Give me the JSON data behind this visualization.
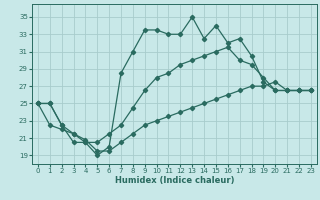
{
  "xlabel": "Humidex (Indice chaleur)",
  "xlim": [
    -0.5,
    23.5
  ],
  "ylim": [
    18.0,
    36.5
  ],
  "xticks": [
    0,
    1,
    2,
    3,
    4,
    5,
    6,
    7,
    8,
    9,
    10,
    11,
    12,
    13,
    14,
    15,
    16,
    17,
    18,
    19,
    20,
    21,
    22,
    23
  ],
  "yticks": [
    19,
    21,
    23,
    25,
    27,
    29,
    31,
    33,
    35
  ],
  "bg_color": "#c8e8e8",
  "grid_color": "#a8cccc",
  "line_color": "#2a6b60",
  "line1_x": [
    0,
    1,
    2,
    3,
    4,
    5,
    6,
    7,
    8,
    9,
    10,
    11,
    12,
    13,
    14,
    15,
    16,
    17,
    18,
    19,
    20,
    21,
    22,
    23
  ],
  "line1_y": [
    25.0,
    25.0,
    22.5,
    20.5,
    20.5,
    19.0,
    20.0,
    28.5,
    31.0,
    33.5,
    33.5,
    33.0,
    33.0,
    35.0,
    32.5,
    34.0,
    32.0,
    32.5,
    30.5,
    27.5,
    26.5,
    26.5,
    26.5,
    26.5
  ],
  "line2_x": [
    0,
    1,
    2,
    3,
    4,
    5,
    6,
    7,
    8,
    9,
    10,
    11,
    12,
    13,
    14,
    15,
    16,
    17,
    18,
    19,
    20,
    21,
    22,
    23
  ],
  "line2_y": [
    25.0,
    25.0,
    22.5,
    21.5,
    20.5,
    20.5,
    21.5,
    22.5,
    24.5,
    26.5,
    28.0,
    28.5,
    29.5,
    30.0,
    30.5,
    31.0,
    31.5,
    30.0,
    29.5,
    28.0,
    26.5,
    26.5,
    26.5,
    26.5
  ],
  "line3_x": [
    0,
    1,
    2,
    3,
    4,
    5,
    6,
    7,
    8,
    9,
    10,
    11,
    12,
    13,
    14,
    15,
    16,
    17,
    18,
    19,
    20,
    21,
    22,
    23
  ],
  "line3_y": [
    25.0,
    22.5,
    22.0,
    21.5,
    20.8,
    19.5,
    19.5,
    20.5,
    21.5,
    22.5,
    23.0,
    23.5,
    24.0,
    24.5,
    25.0,
    25.5,
    26.0,
    26.5,
    27.0,
    27.0,
    27.5,
    26.5,
    26.5,
    26.5
  ]
}
